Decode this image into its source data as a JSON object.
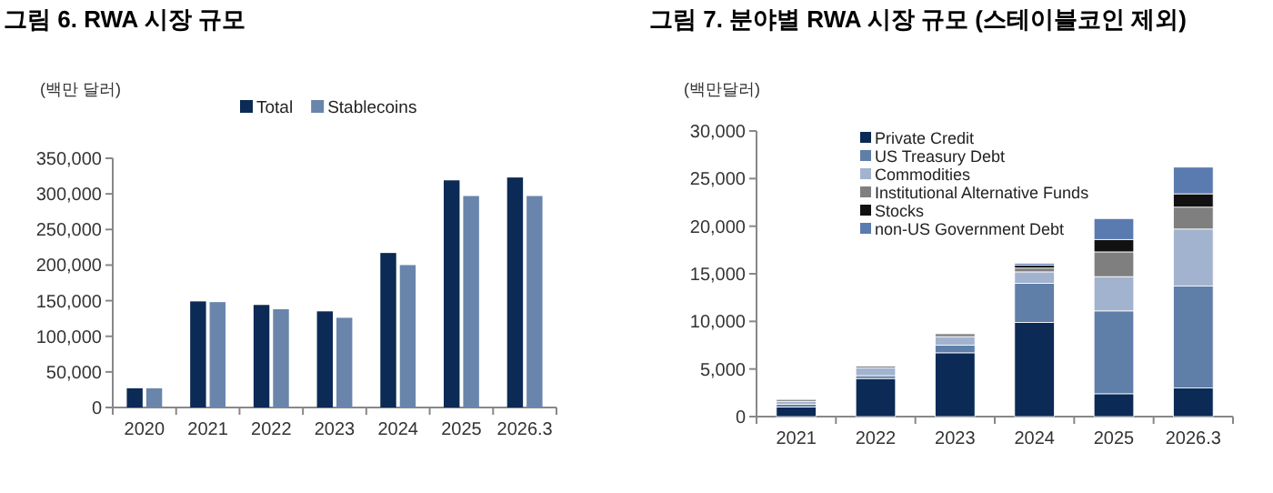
{
  "chart_data": [
    {
      "type": "bar",
      "title": "그림 6. RWA 시장 규모",
      "ylabel": "(백만 달러)",
      "categories": [
        "2020",
        "2021",
        "2022",
        "2023",
        "2024",
        "2025",
        "2026.3"
      ],
      "series": [
        {
          "name": "Total",
          "color": "#0b2a55",
          "values": [
            27000,
            149000,
            144000,
            135000,
            217000,
            319000,
            323000
          ]
        },
        {
          "name": "Stablecoins",
          "color": "#6a85ab",
          "values": [
            27000,
            148000,
            138000,
            126000,
            200000,
            297000,
            297000
          ]
        }
      ],
      "ylim": [
        0,
        350000
      ],
      "yticks": [
        0,
        {
          "value": 50000,
          "label": "50,000"
        },
        {
          "value": 100000,
          "label": "100,000"
        },
        {
          "value": 150000,
          "label": "150,000"
        },
        {
          "value": 200000,
          "label": "200,000"
        },
        {
          "value": 250000,
          "label": "250,000"
        },
        {
          "value": 300000,
          "label": "300,000"
        },
        {
          "value": 350000,
          "label": "350,000"
        }
      ],
      "legend": "top",
      "grid": false
    },
    {
      "type": "bar",
      "stacked": true,
      "title": "그림 7. 분야별 RWA 시장 규모 (스테이블코인 제외)",
      "ylabel": "(백만달러)",
      "categories": [
        "2021",
        "2022",
        "2023",
        "2024",
        "2025",
        "2026.3"
      ],
      "series": [
        {
          "name": "Private Credit",
          "color": "#0b2a55",
          "values": [
            1000,
            4000,
            6700,
            9900,
            2400,
            3000
          ]
        },
        {
          "name": "US Treasury Debt",
          "color": "#5f7ea8",
          "values": [
            300,
            300,
            800,
            4100,
            8700,
            10700
          ]
        },
        {
          "name": "Commodities",
          "color": "#a2b3cf",
          "values": [
            300,
            800,
            900,
            1200,
            3600,
            6000
          ]
        },
        {
          "name": "Institutional Alternative Funds",
          "color": "#7f7f7f",
          "values": [
            200,
            200,
            300,
            400,
            2600,
            2300
          ]
        },
        {
          "name": "Stocks",
          "color": "#111111",
          "values": [
            null,
            null,
            null,
            300,
            1300,
            1400
          ]
        },
        {
          "name": "non-US Government Debt",
          "color": "#5a7bb0",
          "values": [
            null,
            null,
            null,
            200,
            2200,
            2800
          ]
        }
      ],
      "ylim": [
        0,
        30000
      ],
      "yticks": [
        0,
        {
          "value": 5000,
          "label": "5,000"
        },
        {
          "value": 10000,
          "label": "10,000"
        },
        {
          "value": 15000,
          "label": "15,000"
        },
        {
          "value": 20000,
          "label": "20,000"
        },
        {
          "value": 25000,
          "label": "25,000"
        },
        {
          "value": 30000,
          "label": "30,000"
        }
      ],
      "legend": "top left",
      "grid": false
    }
  ]
}
